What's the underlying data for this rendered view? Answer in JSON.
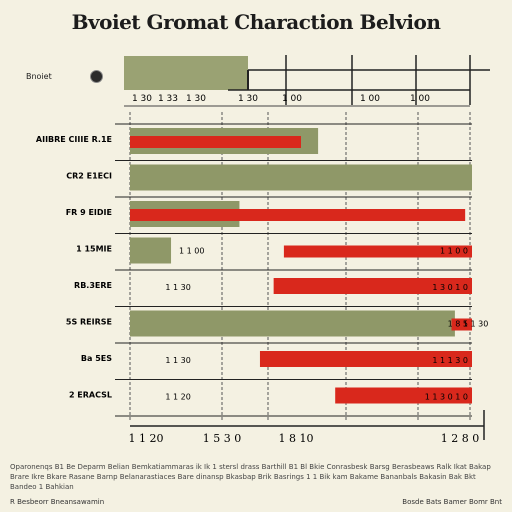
{
  "chart_data": {
    "type": "bar",
    "title": "Bvoiet Gromat Charaction Belvion",
    "legend": {
      "label": "Bnoiet",
      "position": "top-left"
    },
    "top_ticks": [
      "1 30",
      "1 33",
      "1 30",
      "1 30",
      "1 00",
      "1 00",
      "1 00"
    ],
    "categories": [
      "AIIBRE CIIIE R.1E",
      "CR2 E1ECI",
      "FR 9 EIDIE",
      "1 15MIE",
      "RB.3ERE",
      "5S REIRSE",
      "Ba 5ES",
      "2 ERACSL"
    ],
    "series": [
      {
        "name": "",
        "color": "#8f9868",
        "values": [
          55,
          100,
          32,
          12,
          0,
          95,
          0,
          0
        ]
      },
      {
        "name": "",
        "color": "#d9281c",
        "values": [
          50,
          0,
          98,
          55,
          58,
          6,
          62,
          40
        ]
      }
    ],
    "data_labels": [
      "",
      "",
      "",
      "1 1 00",
      "1 1 30",
      "1 1 30",
      "1 1 30",
      "1 1 20"
    ],
    "right_labels": [
      "",
      "",
      "",
      "1 1 0 0",
      "1 3 0 1 0",
      "1 8 5",
      "1 1 1 3 0",
      "1 1 3 0 1 0"
    ],
    "x_tick_labels": [
      "1 1 20",
      "1 5 3 0",
      "1 8 10",
      "1 2 8 0"
    ],
    "xlim": [
      0,
      100
    ],
    "grid": true
  },
  "footnote": "Oparonenqs B1 Be Deparm Belian Bemkatiammaras ik Ik 1 stersl drass Barthill B1 Bl Bkie Conrasbesk Barsg Berasbeaws Ralk Ikat Bakap Brare Ikre Bkare Rasane Barnp Belanarastiaces Bare dinansp Bkasbap Brik Basrings 1 1 Bik kam Bakame Bananbals Bakasin Bak Bkt Bandeo 1 Bahkian",
  "footer": {
    "left": "R Besbeorr Bneansawamin",
    "right": "Bosde Bats Bamer Bomr Bnt"
  }
}
